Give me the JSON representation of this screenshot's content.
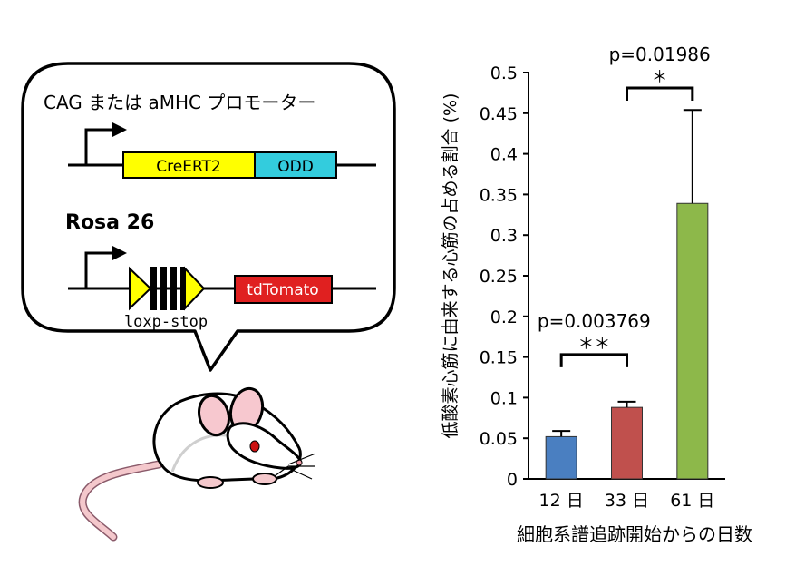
{
  "diagram": {
    "promoter_title": "CAG または aMHC プロモーター",
    "cre_label": "CreERT2",
    "odd_label": "ODD",
    "rosa_label": "Rosa 26",
    "loxp_label": "loxp-stop",
    "tomato_label": "tdTomato",
    "colors": {
      "cre": "#ffff00",
      "odd": "#33ccdd",
      "tomato": "#e02020",
      "loxp": "#ffff00"
    }
  },
  "chart_data": {
    "type": "bar",
    "categories": [
      "12 日",
      "33 日",
      "61 日"
    ],
    "values": [
      0.052,
      0.088,
      0.339
    ],
    "errors": [
      0.007,
      0.007,
      0.115
    ],
    "colors": [
      "#4a7fc1",
      "#c0504d",
      "#8db84a"
    ],
    "ylabel": "低酸素心筋に由来する心筋の占める割合 (%)",
    "xlabel": "細胞系譜追跡開始からの日数",
    "ylim": [
      0,
      0.5
    ],
    "yticks": [
      "0",
      "0.05",
      "0.1",
      "0.15",
      "0.2",
      "0.25",
      "0.3",
      "0.35",
      "0.4",
      "0.45",
      "0.5"
    ],
    "annotations": [
      {
        "p_text": "p=0.003769",
        "stars": "＊＊",
        "from": 0,
        "to": 1
      },
      {
        "p_text": "p=0.01986",
        "stars": "＊",
        "from": 1,
        "to": 2
      }
    ]
  }
}
